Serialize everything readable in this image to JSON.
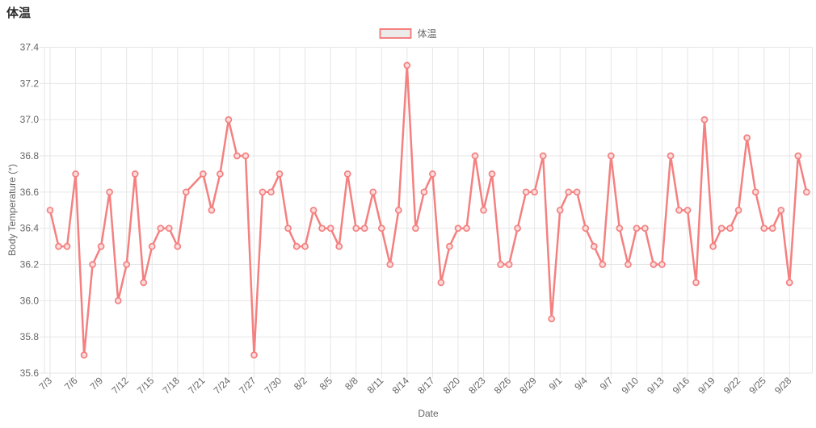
{
  "window": {
    "title": "体温"
  },
  "legend": {
    "items": [
      {
        "label": "体温"
      }
    ]
  },
  "colors": {
    "accent": "#f48080",
    "point_fill": "#fadbdb",
    "legend_swatch_fill": "#edeaea",
    "grid": "#e6e6e6",
    "text_muted": "#666666",
    "title_text": "#2d2d2d"
  },
  "chart_data": {
    "type": "line",
    "title": "体温",
    "xlabel": "Date",
    "ylabel": "Body Temperature (°)",
    "ylim": [
      35.6,
      37.4
    ],
    "ytick_step": 0.2,
    "x_tick_every": 3,
    "grid": true,
    "legend_position": "top",
    "x": [
      "7/3",
      "7/4",
      "7/5",
      "7/6",
      "7/7",
      "7/8",
      "7/9",
      "7/10",
      "7/11",
      "7/12",
      "7/13",
      "7/14",
      "7/15",
      "7/16",
      "7/17",
      "7/18",
      "7/19",
      "7/20",
      "7/21",
      "7/22",
      "7/23",
      "7/24",
      "7/25",
      "7/26",
      "7/27",
      "7/28",
      "7/29",
      "7/30",
      "7/31",
      "8/1",
      "8/2",
      "8/3",
      "8/4",
      "8/5",
      "8/6",
      "8/7",
      "8/8",
      "8/9",
      "8/10",
      "8/11",
      "8/12",
      "8/13",
      "8/14",
      "8/15",
      "8/16",
      "8/17",
      "8/18",
      "8/19",
      "8/20",
      "8/21",
      "8/22",
      "8/23",
      "8/24",
      "8/25",
      "8/26",
      "8/27",
      "8/28",
      "8/29",
      "8/30",
      "8/31",
      "9/1",
      "9/2",
      "9/3",
      "9/4",
      "9/5",
      "9/6",
      "9/7",
      "9/8",
      "9/9",
      "9/10",
      "9/11",
      "9/12",
      "9/13",
      "9/14",
      "9/15",
      "9/16",
      "9/17",
      "9/18",
      "9/19",
      "9/20",
      "9/21",
      "9/22",
      "9/23",
      "9/24",
      "9/25",
      "9/26",
      "9/27",
      "9/28",
      "9/29",
      "9/30"
    ],
    "series": [
      {
        "name": "体温",
        "values": [
          36.5,
          36.3,
          36.3,
          36.7,
          35.7,
          36.2,
          36.3,
          36.6,
          36.0,
          36.2,
          36.7,
          36.1,
          36.3,
          36.4,
          36.4,
          36.3,
          36.6,
          null,
          36.7,
          36.5,
          36.7,
          37.0,
          36.8,
          36.8,
          35.7,
          36.6,
          36.6,
          36.7,
          36.4,
          36.3,
          36.3,
          36.5,
          36.4,
          36.4,
          36.3,
          36.7,
          36.4,
          36.4,
          36.6,
          36.4,
          36.2,
          36.5,
          37.3,
          36.4,
          36.6,
          36.7,
          36.1,
          36.3,
          36.4,
          36.4,
          36.8,
          36.5,
          36.7,
          36.2,
          36.2,
          36.4,
          36.6,
          36.6,
          36.8,
          35.9,
          36.5,
          36.6,
          36.6,
          36.4,
          36.3,
          36.2,
          36.8,
          36.4,
          36.2,
          36.4,
          36.4,
          36.2,
          36.2,
          36.8,
          36.5,
          36.5,
          36.1,
          37.0,
          36.3,
          36.4,
          36.4,
          36.5,
          36.9,
          36.6,
          36.4,
          36.4,
          36.5,
          36.1,
          36.8,
          36.6
        ]
      }
    ]
  }
}
